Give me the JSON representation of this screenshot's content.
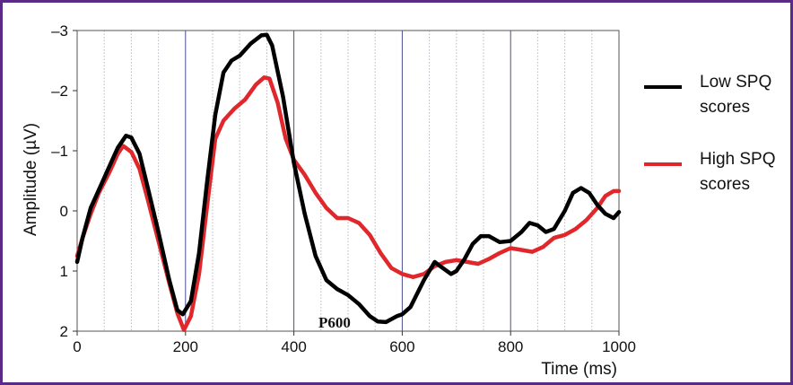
{
  "chart_data": {
    "type": "line",
    "title": "",
    "xlabel": "Time (ms)",
    "ylabel": "Amplitude (µV)",
    "xlim": [
      0,
      1000
    ],
    "ylim": [
      -3,
      2
    ],
    "y_inverted": true,
    "x_ticks": [
      "0",
      "200",
      "400",
      "600",
      "800",
      "1000"
    ],
    "x_tick_values": [
      0,
      200,
      400,
      600,
      800,
      1000
    ],
    "y_ticks": [
      "–3",
      "–2",
      "–1",
      "0",
      "1",
      "2"
    ],
    "y_tick_values": [
      -3,
      -2,
      -1,
      0,
      1,
      2
    ],
    "grid": {
      "major_x": [
        200,
        400,
        600,
        800
      ],
      "minor_x_step": 50,
      "major_color": "#4b4c8f",
      "minor_color": "#b9b9c4"
    },
    "legend_position": "right",
    "series": [
      {
        "name": "Low SPQ scores",
        "color": "#000000",
        "points": [
          [
            0,
            0.85
          ],
          [
            10,
            0.45
          ],
          [
            25,
            -0.05
          ],
          [
            40,
            -0.35
          ],
          [
            60,
            -0.75
          ],
          [
            75,
            -1.05
          ],
          [
            90,
            -1.25
          ],
          [
            100,
            -1.22
          ],
          [
            115,
            -0.95
          ],
          [
            130,
            -0.4
          ],
          [
            150,
            0.35
          ],
          [
            170,
            1.15
          ],
          [
            185,
            1.65
          ],
          [
            195,
            1.72
          ],
          [
            210,
            1.5
          ],
          [
            225,
            0.7
          ],
          [
            240,
            -0.5
          ],
          [
            255,
            -1.6
          ],
          [
            270,
            -2.3
          ],
          [
            285,
            -2.5
          ],
          [
            300,
            -2.58
          ],
          [
            320,
            -2.78
          ],
          [
            340,
            -2.92
          ],
          [
            350,
            -2.93
          ],
          [
            360,
            -2.75
          ],
          [
            380,
            -1.9
          ],
          [
            400,
            -0.8
          ],
          [
            420,
            0.05
          ],
          [
            440,
            0.75
          ],
          [
            460,
            1.15
          ],
          [
            480,
            1.3
          ],
          [
            500,
            1.4
          ],
          [
            520,
            1.55
          ],
          [
            540,
            1.75
          ],
          [
            555,
            1.84
          ],
          [
            570,
            1.85
          ],
          [
            590,
            1.75
          ],
          [
            600,
            1.72
          ],
          [
            615,
            1.6
          ],
          [
            640,
            1.15
          ],
          [
            660,
            0.85
          ],
          [
            670,
            0.92
          ],
          [
            690,
            1.05
          ],
          [
            700,
            1.0
          ],
          [
            715,
            0.8
          ],
          [
            730,
            0.55
          ],
          [
            745,
            0.42
          ],
          [
            760,
            0.42
          ],
          [
            780,
            0.52
          ],
          [
            800,
            0.5
          ],
          [
            820,
            0.35
          ],
          [
            835,
            0.2
          ],
          [
            850,
            0.24
          ],
          [
            865,
            0.35
          ],
          [
            880,
            0.3
          ],
          [
            900,
            0.0
          ],
          [
            915,
            -0.3
          ],
          [
            930,
            -0.38
          ],
          [
            945,
            -0.3
          ],
          [
            960,
            -0.1
          ],
          [
            975,
            0.05
          ],
          [
            990,
            0.12
          ],
          [
            1000,
            0.02
          ]
        ]
      },
      {
        "name": "High SPQ scores",
        "color": "#e0282c",
        "points": [
          [
            0,
            0.75
          ],
          [
            10,
            0.45
          ],
          [
            25,
            0.05
          ],
          [
            40,
            -0.3
          ],
          [
            60,
            -0.65
          ],
          [
            75,
            -0.95
          ],
          [
            85,
            -1.08
          ],
          [
            100,
            -0.98
          ],
          [
            115,
            -0.7
          ],
          [
            130,
            -0.2
          ],
          [
            150,
            0.5
          ],
          [
            170,
            1.2
          ],
          [
            185,
            1.7
          ],
          [
            197,
            1.98
          ],
          [
            210,
            1.75
          ],
          [
            225,
            1.05
          ],
          [
            240,
            -0.1
          ],
          [
            255,
            -1.2
          ],
          [
            270,
            -1.5
          ],
          [
            290,
            -1.7
          ],
          [
            310,
            -1.85
          ],
          [
            330,
            -2.1
          ],
          [
            345,
            -2.22
          ],
          [
            355,
            -2.2
          ],
          [
            370,
            -1.8
          ],
          [
            385,
            -1.2
          ],
          [
            400,
            -0.85
          ],
          [
            420,
            -0.6
          ],
          [
            440,
            -0.3
          ],
          [
            460,
            -0.05
          ],
          [
            480,
            0.12
          ],
          [
            500,
            0.12
          ],
          [
            520,
            0.2
          ],
          [
            540,
            0.4
          ],
          [
            560,
            0.7
          ],
          [
            580,
            0.95
          ],
          [
            600,
            1.05
          ],
          [
            620,
            1.1
          ],
          [
            640,
            1.05
          ],
          [
            660,
            0.92
          ],
          [
            680,
            0.85
          ],
          [
            700,
            0.82
          ],
          [
            720,
            0.85
          ],
          [
            740,
            0.88
          ],
          [
            760,
            0.8
          ],
          [
            780,
            0.7
          ],
          [
            800,
            0.62
          ],
          [
            820,
            0.65
          ],
          [
            840,
            0.68
          ],
          [
            860,
            0.6
          ],
          [
            880,
            0.45
          ],
          [
            900,
            0.4
          ],
          [
            920,
            0.3
          ],
          [
            940,
            0.15
          ],
          [
            960,
            -0.05
          ],
          [
            975,
            -0.25
          ],
          [
            990,
            -0.33
          ],
          [
            1000,
            -0.33
          ]
        ]
      }
    ],
    "annotations": [
      {
        "text": "P600",
        "x": 475,
        "y": 1.85
      }
    ]
  }
}
